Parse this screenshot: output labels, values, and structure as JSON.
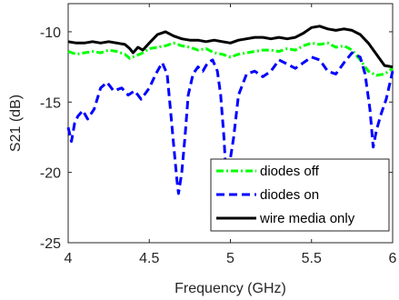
{
  "chart_data": {
    "type": "line",
    "title": "",
    "xlabel": "Frequency (GHz)",
    "ylabel": "S21 (dB)",
    "xlim": [
      4,
      6
    ],
    "ylim": [
      -25,
      -8
    ],
    "x_ticks": [
      "4",
      "4.5",
      "5",
      "5.5",
      "6"
    ],
    "y_ticks": [
      "-10",
      "-15",
      "-20",
      "-25"
    ],
    "x_tick_values": [
      4,
      4.5,
      5,
      5.5,
      6
    ],
    "y_tick_values": [
      -10,
      -15,
      -20,
      -25
    ],
    "grid": false,
    "legend_position": "bottom-right",
    "series": [
      {
        "name": "diodes off",
        "color": "#00ff00",
        "dash": "dash-dot",
        "x": [
          4.0,
          4.05,
          4.1,
          4.15,
          4.2,
          4.25,
          4.3,
          4.35,
          4.38,
          4.42,
          4.46,
          4.5,
          4.55,
          4.6,
          4.65,
          4.7,
          4.75,
          4.8,
          4.85,
          4.9,
          4.95,
          5.0,
          5.05,
          5.1,
          5.15,
          5.2,
          5.25,
          5.3,
          5.35,
          5.4,
          5.45,
          5.5,
          5.55,
          5.6,
          5.65,
          5.7,
          5.75,
          5.8,
          5.85,
          5.9,
          5.95,
          6.0
        ],
        "y": [
          -11.4,
          -11.6,
          -11.5,
          -11.4,
          -11.5,
          -11.3,
          -11.4,
          -11.6,
          -11.9,
          -11.7,
          -11.5,
          -11.2,
          -11.1,
          -11.0,
          -10.8,
          -11.0,
          -11.1,
          -11.3,
          -11.2,
          -11.5,
          -11.6,
          -11.8,
          -11.6,
          -11.5,
          -11.4,
          -11.3,
          -11.3,
          -11.4,
          -11.2,
          -11.3,
          -11.0,
          -10.8,
          -10.9,
          -10.8,
          -11.1,
          -11.0,
          -11.3,
          -12.0,
          -12.8,
          -13.1,
          -13.0,
          -12.6
        ]
      },
      {
        "name": "diodes on",
        "color": "#0000ff",
        "dash": "dash",
        "x": [
          4.0,
          4.02,
          4.04,
          4.06,
          4.09,
          4.12,
          4.16,
          4.2,
          4.24,
          4.28,
          4.33,
          4.37,
          4.41,
          4.45,
          4.5,
          4.54,
          4.58,
          4.61,
          4.63,
          4.65,
          4.67,
          4.68,
          4.7,
          4.72,
          4.74,
          4.77,
          4.8,
          4.83,
          4.86,
          4.89,
          4.92,
          4.94,
          4.96,
          4.97,
          4.985,
          5.0,
          5.02,
          5.05,
          5.1,
          5.15,
          5.2,
          5.25,
          5.3,
          5.35,
          5.4,
          5.45,
          5.5,
          5.55,
          5.6,
          5.65,
          5.7,
          5.75,
          5.8,
          5.83,
          5.86,
          5.88,
          5.9,
          5.93,
          5.96,
          6.0
        ],
        "y": [
          -16.8,
          -17.8,
          -16.5,
          -16.0,
          -15.6,
          -16.2,
          -15.5,
          -14.0,
          -13.6,
          -14.2,
          -14.0,
          -14.5,
          -14.2,
          -14.8,
          -14.0,
          -13.0,
          -12.2,
          -13.0,
          -15.5,
          -18.0,
          -20.5,
          -21.5,
          -20.0,
          -17.5,
          -14.5,
          -13.0,
          -12.5,
          -12.8,
          -12.2,
          -12.0,
          -12.8,
          -14.5,
          -17.5,
          -19.5,
          -19.8,
          -19.0,
          -17.5,
          -14.5,
          -13.0,
          -12.8,
          -13.2,
          -12.8,
          -12.0,
          -12.3,
          -12.6,
          -12.2,
          -11.8,
          -12.0,
          -12.8,
          -13.0,
          -12.2,
          -11.5,
          -11.8,
          -13.0,
          -15.5,
          -18.2,
          -17.0,
          -15.8,
          -14.8,
          -12.8
        ]
      },
      {
        "name": "wire media only",
        "color": "#000000",
        "dash": "solid",
        "x": [
          4.0,
          4.05,
          4.1,
          4.15,
          4.2,
          4.25,
          4.3,
          4.35,
          4.38,
          4.4,
          4.43,
          4.46,
          4.5,
          4.55,
          4.6,
          4.65,
          4.7,
          4.75,
          4.8,
          4.85,
          4.9,
          4.95,
          5.0,
          5.05,
          5.1,
          5.15,
          5.2,
          5.25,
          5.3,
          5.35,
          5.4,
          5.45,
          5.5,
          5.55,
          5.6,
          5.65,
          5.7,
          5.75,
          5.8,
          5.85,
          5.9,
          5.95,
          6.0
        ],
        "y": [
          -10.7,
          -10.8,
          -10.8,
          -10.7,
          -10.8,
          -10.7,
          -10.8,
          -10.9,
          -11.2,
          -11.5,
          -11.1,
          -11.3,
          -10.8,
          -10.2,
          -10.0,
          -10.3,
          -10.5,
          -10.6,
          -10.6,
          -10.7,
          -10.6,
          -10.7,
          -10.8,
          -10.6,
          -10.5,
          -10.4,
          -10.4,
          -10.5,
          -10.4,
          -10.5,
          -10.4,
          -10.1,
          -9.7,
          -9.6,
          -9.8,
          -9.9,
          -9.8,
          -9.9,
          -10.2,
          -10.8,
          -11.6,
          -12.4,
          -12.5
        ]
      }
    ]
  }
}
